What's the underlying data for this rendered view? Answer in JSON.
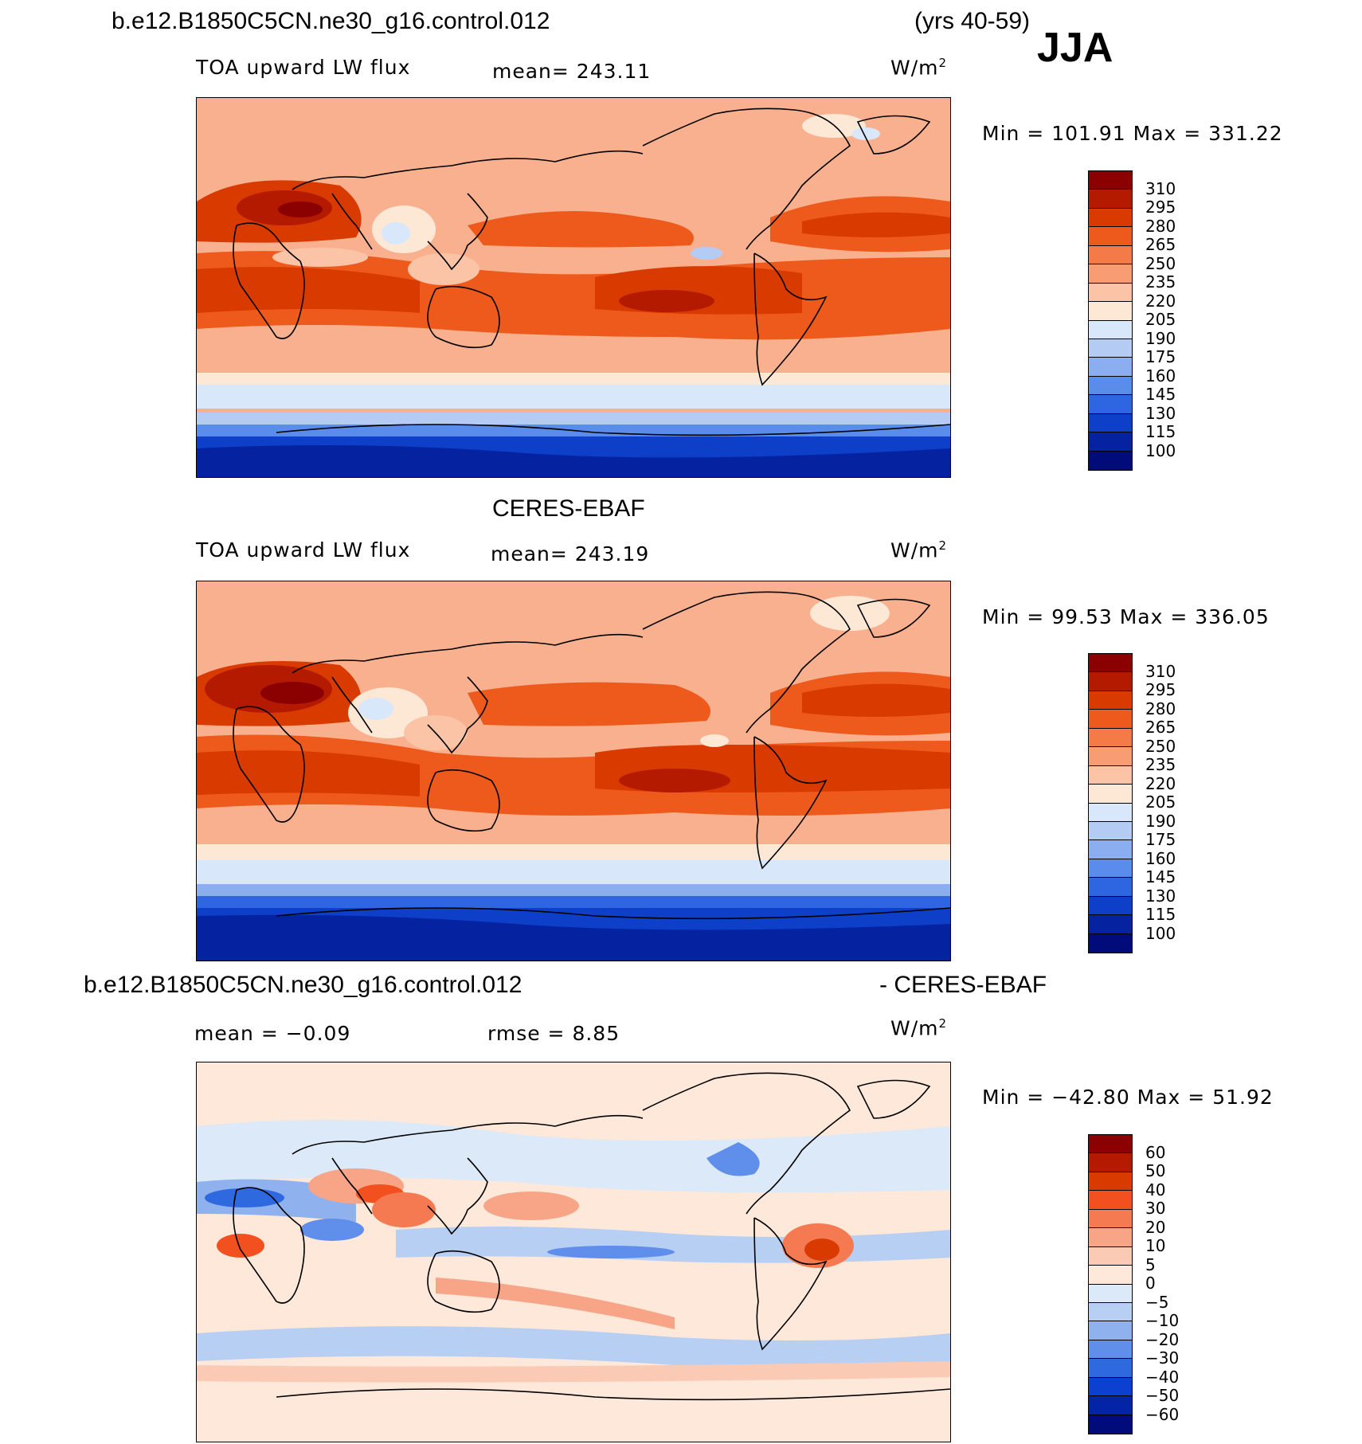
{
  "header": {
    "case_name": "b.e12.B1850C5CN.ne30_g16.control.012",
    "years": "(yrs 40-59)",
    "season": "JJA"
  },
  "panels": [
    {
      "title": "",
      "variable": "TOA upward LW flux",
      "mean_label": "mean=  243.11",
      "units": "W/m",
      "units_exp": "2",
      "minmax": "Min  =  101.91  Max  =  331.22",
      "colorbar": {
        "labels": [
          "310",
          "295",
          "280",
          "265",
          "250",
          "235",
          "220",
          "205",
          "190",
          "175",
          "160",
          "145",
          "130",
          "115",
          "100"
        ],
        "colors": [
          "#8b0000",
          "#b41a00",
          "#d83a00",
          "#ee5a1c",
          "#f47a48",
          "#f89c74",
          "#fbc4a6",
          "#fde8d6",
          "#d8e8fa",
          "#b4ccf4",
          "#8aaef0",
          "#5a8cec",
          "#2e66e2",
          "#0d3fc8",
          "#0522a0",
          "#020b7a"
        ]
      }
    },
    {
      "title": "CERES-EBAF",
      "variable": "TOA upward LW flux",
      "mean_label": "mean=  243.19",
      "units": "W/m",
      "units_exp": "2",
      "minmax": "Min  =   99.53  Max  =  336.05",
      "colorbar": {
        "labels": [
          "310",
          "295",
          "280",
          "265",
          "250",
          "235",
          "220",
          "205",
          "190",
          "175",
          "160",
          "145",
          "130",
          "115",
          "100"
        ],
        "colors": [
          "#8b0000",
          "#b41a00",
          "#d83a00",
          "#ee5a1c",
          "#f47a48",
          "#f89c74",
          "#fbc4a6",
          "#fde8d6",
          "#d8e8fa",
          "#b4ccf4",
          "#8aaef0",
          "#5a8cec",
          "#2e66e2",
          "#0d3fc8",
          "#0522a0",
          "#020b7a"
        ]
      }
    },
    {
      "title_left": "b.e12.B1850C5CN.ne30_g16.control.012",
      "title_right": "- CERES-EBAF",
      "mean_label": "mean  =   −0.09",
      "rmse_label": "rmse  =     8.85",
      "units": "W/m",
      "units_exp": "2",
      "minmax": "Min  =  −42.80  Max  =   51.92",
      "colorbar": {
        "labels": [
          "60",
          "50",
          "40",
          "30",
          "20",
          "10",
          "5",
          "0",
          "−5",
          "−10",
          "−20",
          "−30",
          "−40",
          "−50",
          "−60"
        ],
        "colors": [
          "#8b0000",
          "#b41a00",
          "#d83a00",
          "#f2501e",
          "#f57a52",
          "#f8a486",
          "#fbcab4",
          "#fde8da",
          "#dce9f8",
          "#b8cff4",
          "#8fb1ee",
          "#5f8fea",
          "#2f69e0",
          "#0b40d0",
          "#0424a8",
          "#020b7a"
        ]
      }
    }
  ]
}
